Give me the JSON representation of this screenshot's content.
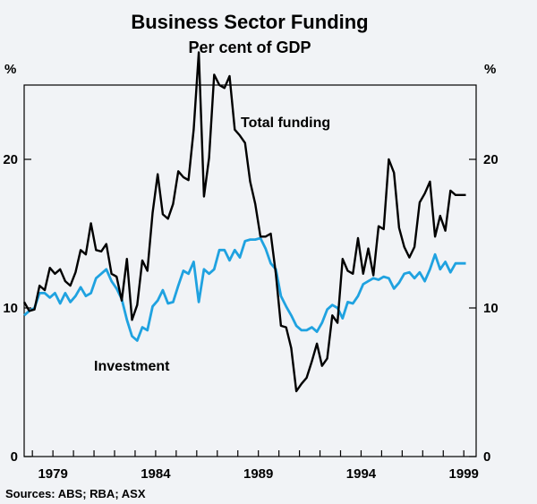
{
  "chart_data": {
    "type": "line",
    "title": "Business Sector Funding",
    "subtitle": "Per cent of GDP",
    "y_unit_left": "%",
    "y_unit_right": "%",
    "ylim": [
      0,
      25
    ],
    "yticks": [
      0,
      10,
      20
    ],
    "xlim": [
      1977.6,
      1999.6
    ],
    "xticks": [
      {
        "value": 1979,
        "label": "1979"
      },
      {
        "value": 1984,
        "label": "1984"
      },
      {
        "value": 1989,
        "label": "1989"
      },
      {
        "value": 1994,
        "label": "1994"
      },
      {
        "value": 1999,
        "label": "1999"
      }
    ],
    "grid": false,
    "source": "Sources: ABS; RBA; ASX",
    "series": [
      {
        "name": "Total funding",
        "color": "#000000",
        "x": [
          1977.6,
          1977.85,
          1978.1,
          1978.35,
          1978.6,
          1978.85,
          1979.1,
          1979.35,
          1979.6,
          1979.85,
          1980.1,
          1980.35,
          1980.6,
          1980.85,
          1981.1,
          1981.35,
          1981.6,
          1981.85,
          1982.1,
          1982.35,
          1982.6,
          1982.85,
          1983.1,
          1983.35,
          1983.6,
          1983.85,
          1984.1,
          1984.35,
          1984.6,
          1984.85,
          1985.1,
          1985.35,
          1985.6,
          1985.85,
          1986.1,
          1986.35,
          1986.6,
          1986.85,
          1987.1,
          1987.35,
          1987.6,
          1987.85,
          1988.1,
          1988.35,
          1988.6,
          1988.85,
          1989.1,
          1989.35,
          1989.6,
          1989.85,
          1990.1,
          1990.35,
          1990.6,
          1990.85,
          1991.1,
          1991.35,
          1991.6,
          1991.85,
          1992.1,
          1992.35,
          1992.6,
          1992.85,
          1993.1,
          1993.35,
          1993.6,
          1993.85,
          1994.1,
          1994.35,
          1994.6,
          1994.85,
          1995.1,
          1995.35,
          1995.6,
          1995.85,
          1996.1,
          1996.35,
          1996.6,
          1996.85,
          1997.1,
          1997.35,
          1997.6,
          1997.85,
          1998.1,
          1998.35,
          1998.6,
          1998.85,
          1999.1
        ],
        "values": [
          10.4,
          9.8,
          9.9,
          11.5,
          11.2,
          12.7,
          12.3,
          12.6,
          11.8,
          11.5,
          12.4,
          13.9,
          13.6,
          15.7,
          13.9,
          13.8,
          14.3,
          12.3,
          12.1,
          10.5,
          13.3,
          9.2,
          10.2,
          13.2,
          12.5,
          16.4,
          19.0,
          16.3,
          16.0,
          17.0,
          19.2,
          18.8,
          18.6,
          22.0,
          27.2,
          17.5,
          20.1,
          25.7,
          25.0,
          24.8,
          25.6,
          22.0,
          21.6,
          21.1,
          18.5,
          17.0,
          14.8,
          14.8,
          15.0,
          12.3,
          8.8,
          8.7,
          7.3,
          4.4,
          4.9,
          5.3,
          6.4,
          7.6,
          6.1,
          6.6,
          9.5,
          9.0,
          13.3,
          12.5,
          12.3,
          14.7,
          12.3,
          14.0,
          12.2,
          15.5,
          15.3,
          20.0,
          19.1,
          15.4,
          14.1,
          13.4,
          14.1,
          17.1,
          17.7,
          18.5,
          14.8,
          16.2,
          15.2,
          17.9,
          17.6,
          17.6,
          17.6
        ]
      },
      {
        "name": "Investment",
        "color": "#1fa2e0",
        "x": [
          1977.6,
          1977.85,
          1978.1,
          1978.35,
          1978.6,
          1978.85,
          1979.1,
          1979.35,
          1979.6,
          1979.85,
          1980.1,
          1980.35,
          1980.6,
          1980.85,
          1981.1,
          1981.35,
          1981.6,
          1981.85,
          1982.1,
          1982.35,
          1982.6,
          1982.85,
          1983.1,
          1983.35,
          1983.6,
          1983.85,
          1984.1,
          1984.35,
          1984.6,
          1984.85,
          1985.1,
          1985.35,
          1985.6,
          1985.85,
          1986.1,
          1986.35,
          1986.6,
          1986.85,
          1987.1,
          1987.35,
          1987.6,
          1987.85,
          1988.1,
          1988.35,
          1988.6,
          1988.85,
          1989.1,
          1989.35,
          1989.6,
          1989.85,
          1990.1,
          1990.35,
          1990.6,
          1990.85,
          1991.1,
          1991.35,
          1991.6,
          1991.85,
          1992.1,
          1992.35,
          1992.6,
          1992.85,
          1993.1,
          1993.35,
          1993.6,
          1993.85,
          1994.1,
          1994.35,
          1994.6,
          1994.85,
          1995.1,
          1995.35,
          1995.6,
          1995.85,
          1996.1,
          1996.35,
          1996.6,
          1996.85,
          1997.1,
          1997.35,
          1997.6,
          1997.85,
          1998.1,
          1998.35,
          1998.6,
          1998.85,
          1999.1
        ],
        "values": [
          9.5,
          9.8,
          10.0,
          11.0,
          11.0,
          10.7,
          11.0,
          10.3,
          11.0,
          10.4,
          10.8,
          11.4,
          10.8,
          11.0,
          12.0,
          12.3,
          12.6,
          11.8,
          11.3,
          10.6,
          9.2,
          8.1,
          7.8,
          8.7,
          8.5,
          10.1,
          10.5,
          11.2,
          10.3,
          10.4,
          11.5,
          12.5,
          12.3,
          13.1,
          10.4,
          12.6,
          12.3,
          12.6,
          13.9,
          13.9,
          13.2,
          13.9,
          13.4,
          14.5,
          14.6,
          14.6,
          14.7,
          14.0,
          13.0,
          12.6,
          10.8,
          10.1,
          9.5,
          8.8,
          8.5,
          8.5,
          8.7,
          8.4,
          9.0,
          9.9,
          10.2,
          10.0,
          9.3,
          10.4,
          10.3,
          10.8,
          11.6,
          11.8,
          12.0,
          11.9,
          12.1,
          12.0,
          11.3,
          11.7,
          12.3,
          12.4,
          12.0,
          12.4,
          11.8,
          12.6,
          13.6,
          12.6,
          13.1,
          12.4,
          13.0,
          13.0,
          13.0
        ]
      }
    ],
    "annotations": [
      {
        "text": "Total funding",
        "series": "Total funding"
      },
      {
        "text": "Investment",
        "series": "Investment"
      }
    ]
  }
}
